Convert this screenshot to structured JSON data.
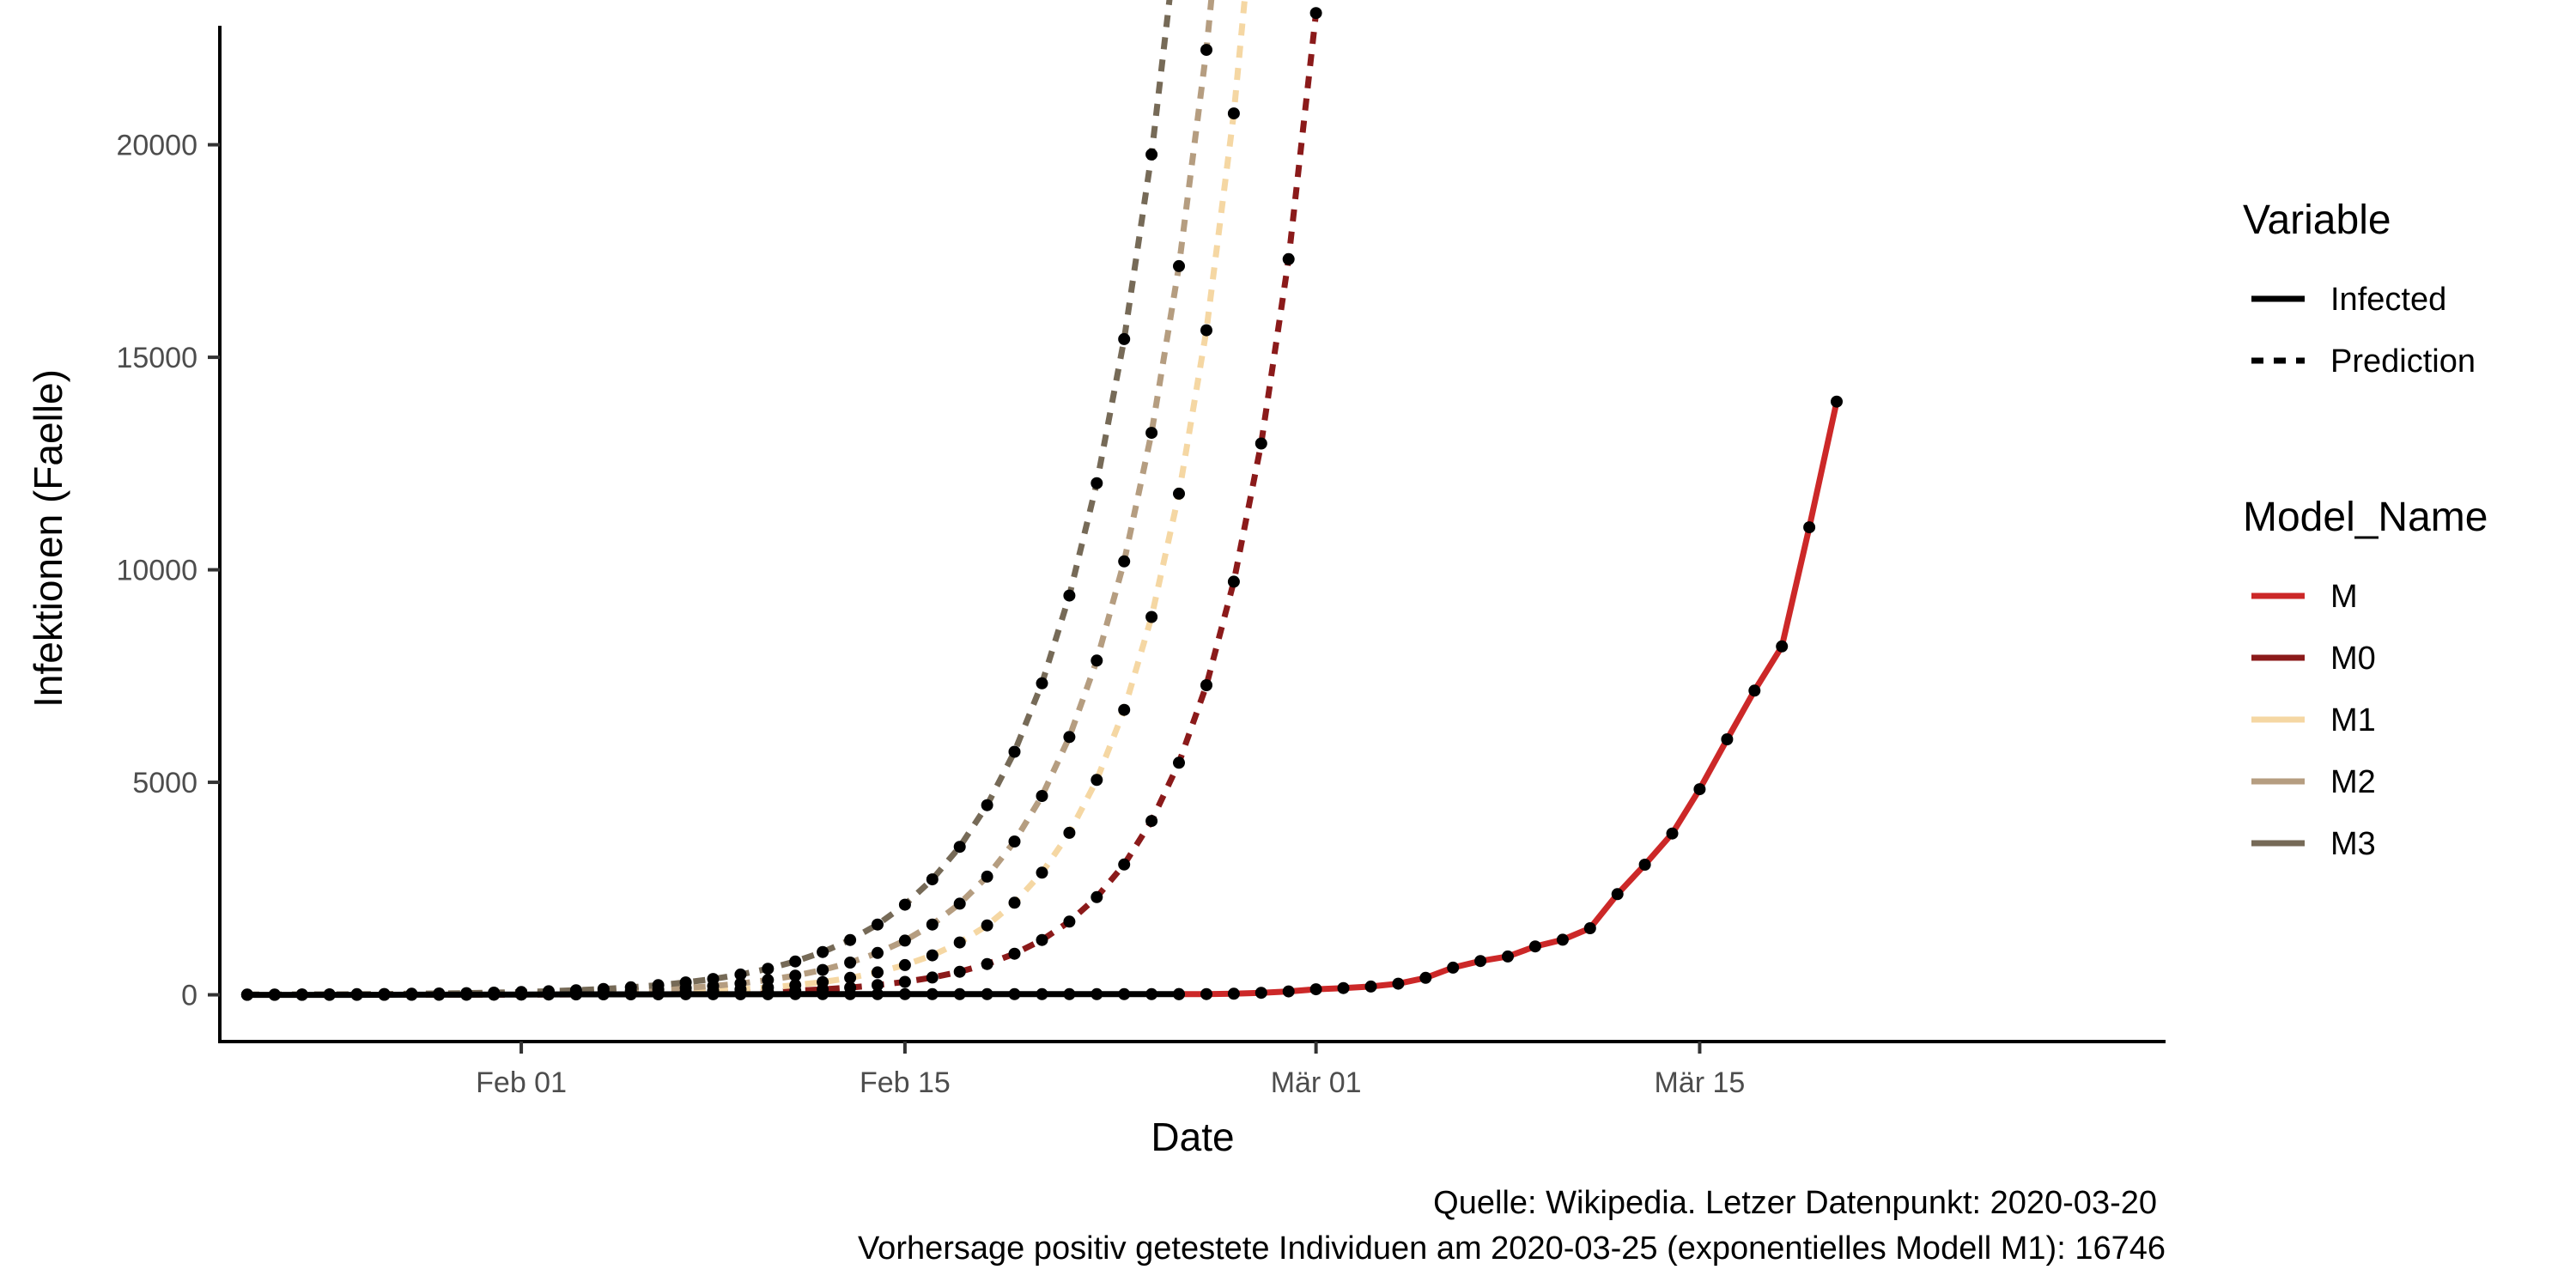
{
  "chart_data": {
    "type": "line",
    "xlabel": "Date",
    "ylabel": "Infektionen (Faelle)",
    "x_range": [
      "2020-01-21",
      "2020-04-01"
    ],
    "ylim": [
      -1100,
      22800
    ],
    "yticks": [
      0,
      5000,
      10000,
      15000,
      20000
    ],
    "xticks": [
      {
        "date": "2020-02-01",
        "label": "Feb 01"
      },
      {
        "date": "2020-02-15",
        "label": "Feb 15"
      },
      {
        "date": "2020-03-01",
        "label": "Mär 01"
      },
      {
        "date": "2020-03-15",
        "label": "Mär 15"
      }
    ],
    "grid": false,
    "legend_placement": "right",
    "legends": {
      "variable": {
        "title": "Variable",
        "items": [
          {
            "label": "Infected",
            "linetype": "solid"
          },
          {
            "label": "Prediction",
            "linetype": "dashed"
          }
        ]
      },
      "model": {
        "title": "Model_Name",
        "items": [
          {
            "label": "M",
            "color": "#cc2828"
          },
          {
            "label": "M0",
            "color": "#8b1a1a"
          },
          {
            "label": "M1",
            "color": "#f5d7a3"
          },
          {
            "label": "M2",
            "color": "#b59d80"
          },
          {
            "label": "M3",
            "color": "#766a57"
          }
        ]
      }
    },
    "series": [
      {
        "name": "M",
        "variable": "Infected",
        "color": "#cc2828",
        "points": [
          [
            "2020-02-25",
            16
          ],
          [
            "2020-02-26",
            18
          ],
          [
            "2020-02-27",
            26
          ],
          [
            "2020-02-28",
            48
          ],
          [
            "2020-02-29",
            79
          ],
          [
            "2020-03-01",
            130
          ],
          [
            "2020-03-02",
            159
          ],
          [
            "2020-03-03",
            196
          ],
          [
            "2020-03-04",
            262
          ],
          [
            "2020-03-05",
            400
          ],
          [
            "2020-03-06",
            639
          ],
          [
            "2020-03-07",
            795
          ],
          [
            "2020-03-08",
            902
          ],
          [
            "2020-03-09",
            1139
          ],
          [
            "2020-03-10",
            1296
          ],
          [
            "2020-03-11",
            1567
          ],
          [
            "2020-03-12",
            2369
          ],
          [
            "2020-03-13",
            3062
          ],
          [
            "2020-03-14",
            3795
          ],
          [
            "2020-03-15",
            4838
          ],
          [
            "2020-03-16",
            6012
          ],
          [
            "2020-03-17",
            7156
          ],
          [
            "2020-03-18",
            8198
          ],
          [
            "2020-03-19",
            10999
          ],
          [
            "2020-03-20",
            13957
          ]
        ]
      },
      {
        "name": "Infected (early)",
        "variable": "Infected",
        "color": "#000000",
        "points": [
          [
            "2020-01-22",
            0
          ],
          [
            "2020-01-23",
            0
          ],
          [
            "2020-01-24",
            0
          ],
          [
            "2020-01-25",
            0
          ],
          [
            "2020-01-26",
            0
          ],
          [
            "2020-01-27",
            1
          ],
          [
            "2020-01-28",
            4
          ],
          [
            "2020-01-29",
            4
          ],
          [
            "2020-01-30",
            4
          ],
          [
            "2020-01-31",
            5
          ],
          [
            "2020-02-01",
            8
          ],
          [
            "2020-02-02",
            10
          ],
          [
            "2020-02-03",
            12
          ],
          [
            "2020-02-04",
            12
          ],
          [
            "2020-02-05",
            12
          ],
          [
            "2020-02-06",
            12
          ],
          [
            "2020-02-07",
            13
          ],
          [
            "2020-02-08",
            13
          ],
          [
            "2020-02-09",
            14
          ],
          [
            "2020-02-10",
            14
          ],
          [
            "2020-02-11",
            16
          ],
          [
            "2020-02-12",
            16
          ],
          [
            "2020-02-13",
            16
          ],
          [
            "2020-02-14",
            16
          ],
          [
            "2020-02-15",
            16
          ],
          [
            "2020-02-16",
            16
          ],
          [
            "2020-02-17",
            16
          ],
          [
            "2020-02-18",
            16
          ],
          [
            "2020-02-19",
            16
          ],
          [
            "2020-02-20",
            16
          ],
          [
            "2020-02-21",
            16
          ],
          [
            "2020-02-22",
            16
          ],
          [
            "2020-02-23",
            16
          ],
          [
            "2020-02-24",
            16
          ],
          [
            "2020-02-25",
            16
          ]
        ]
      },
      {
        "name": "M0",
        "variable": "Prediction",
        "color": "#8b1a1a",
        "a": 0.3,
        "b": 0.2885,
        "range": [
          "2020-01-22",
          "2020-03-25"
        ]
      },
      {
        "name": "M1",
        "variable": "Prediction",
        "color": "#f5d7a3",
        "a": 0.8,
        "b": 0.2823,
        "range": [
          "2020-01-22",
          "2020-03-25"
        ]
      },
      {
        "name": "M2",
        "variable": "Prediction",
        "color": "#b59d80",
        "a": 2.5,
        "b": 0.2598,
        "range": [
          "2020-01-22",
          "2020-03-25"
        ]
      },
      {
        "name": "M3",
        "variable": "Prediction",
        "color": "#766a57",
        "a": 5.5,
        "b": 0.2481,
        "range": [
          "2020-01-22",
          "2020-03-25"
        ]
      }
    ],
    "caption_lines": [
      "Quelle: Wikipedia. Letzer Datenpunkt: 2020-03-20",
      "Vorhersage positiv getestete Individuen am  2020-03-25  (exponentielles Modell M1):  16746"
    ]
  }
}
